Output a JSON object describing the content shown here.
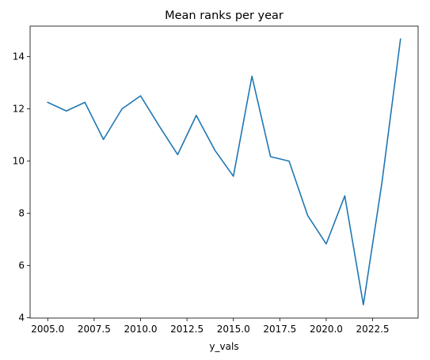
{
  "chart_data": {
    "type": "line",
    "title": "Mean ranks per year",
    "xlabel": "y_vals",
    "ylabel": "",
    "xlim": [
      2004.05,
      2024.95
    ],
    "ylim": [
      3.99,
      15.17
    ],
    "x_ticks": [
      2005.0,
      2007.5,
      2010.0,
      2012.5,
      2015.0,
      2017.5,
      2020.0,
      2022.5
    ],
    "x_tick_labels": [
      "2005.0",
      "2007.5",
      "2010.0",
      "2012.5",
      "2015.0",
      "2017.5",
      "2020.0",
      "2022.5"
    ],
    "y_ticks": [
      4,
      6,
      8,
      10,
      12,
      14
    ],
    "y_tick_labels": [
      "4",
      "6",
      "8",
      "10",
      "12",
      "14"
    ],
    "grid": false,
    "series": [
      {
        "color": "#1f77b4",
        "x": [
          2005,
          2006,
          2007,
          2008,
          2009,
          2010,
          2011,
          2012,
          2013,
          2014,
          2015,
          2016,
          2017,
          2018,
          2019,
          2020,
          2021,
          2022,
          2023,
          2024
        ],
        "y": [
          12.25,
          11.92,
          12.25,
          10.83,
          12.0,
          12.5,
          11.35,
          10.25,
          11.75,
          10.42,
          9.42,
          13.25,
          10.17,
          10.0,
          7.92,
          6.83,
          8.67,
          4.5,
          9.17,
          14.67
        ]
      }
    ]
  }
}
